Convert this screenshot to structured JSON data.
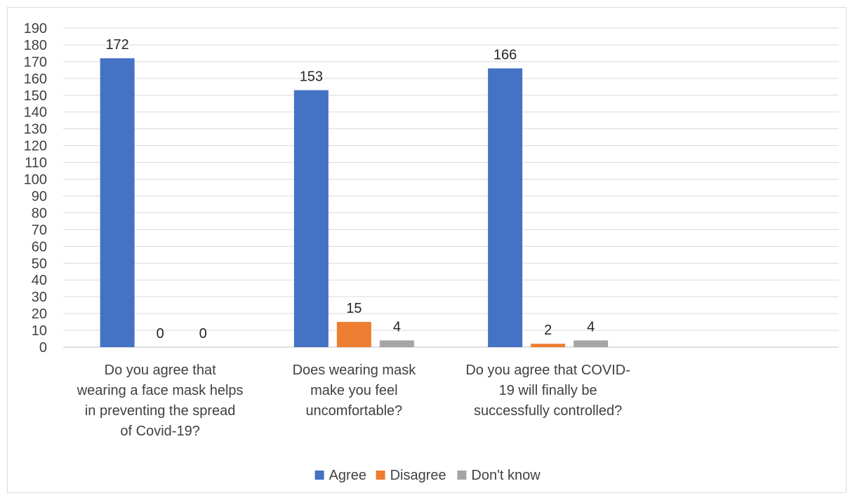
{
  "chart_data": {
    "type": "bar",
    "categories": [
      [
        "Do you agree that",
        "wearing a face mask helps",
        "in preventing the spread",
        "of Covid-19?"
      ],
      [
        "Does wearing mask",
        "make you feel",
        "uncomfortable?"
      ],
      [
        "Do you agree that COVID-",
        "19 will finally be",
        "successfully controlled?"
      ]
    ],
    "series": [
      {
        "name": "Agree",
        "values": [
          172,
          153,
          166
        ],
        "color": "#4472C4"
      },
      {
        "name": "Disagree",
        "values": [
          0,
          15,
          2
        ],
        "color": "#ED7D31"
      },
      {
        "name": "Don't know",
        "values": [
          0,
          4,
          4
        ],
        "color": "#A5A5A5"
      }
    ],
    "title": "",
    "xlabel": "",
    "ylabel": "",
    "ylim": [
      0,
      190
    ],
    "ytick_step": 10,
    "grid": true,
    "legend_position": "bottom",
    "category_slots": 4
  }
}
